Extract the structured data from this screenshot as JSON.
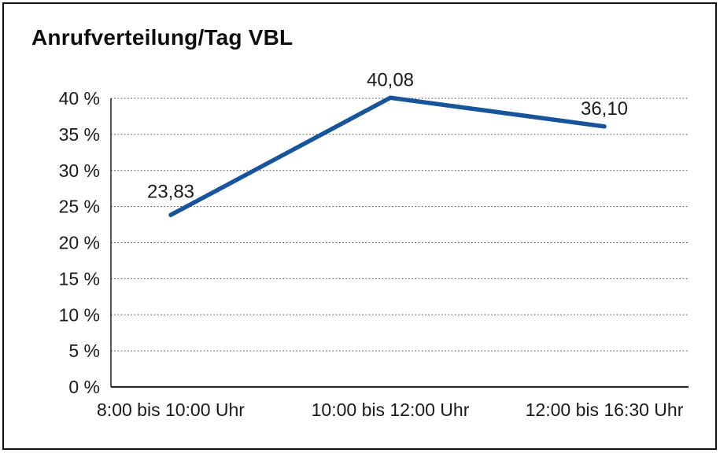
{
  "chart_data": {
    "type": "line",
    "title": "Anrufverteilung/Tag VBL",
    "categories": [
      "8:00 bis 10:00 Uhr",
      "10:00 bis 12:00 Uhr",
      "12:00 bis 16:30 Uhr"
    ],
    "values": [
      23.83,
      40.08,
      36.1
    ],
    "value_labels": [
      "23,83",
      "40,08",
      "36,10"
    ],
    "series_name": "Anrufverteilung",
    "xlabel": "",
    "ylabel": "",
    "ylim": [
      0,
      40
    ],
    "y_tick_step": 5,
    "y_ticks": [
      {
        "value": 0,
        "label": "0 %"
      },
      {
        "value": 5,
        "label": "5 %"
      },
      {
        "value": 10,
        "label": "10 %"
      },
      {
        "value": 15,
        "label": "15 %"
      },
      {
        "value": 20,
        "label": "20 %"
      },
      {
        "value": 25,
        "label": "25 %"
      },
      {
        "value": 30,
        "label": "30 %"
      },
      {
        "value": 35,
        "label": "35 %"
      },
      {
        "value": 40,
        "label": "40 %"
      }
    ],
    "grid": "horizontal-dotted",
    "legend": "none",
    "colors": {
      "line": "#17549B",
      "axis": "#2b2b2b",
      "gridline": "#5a5a5a",
      "text": "#1a1a1a",
      "frame_border": "#111111",
      "background": "#ffffff"
    }
  }
}
